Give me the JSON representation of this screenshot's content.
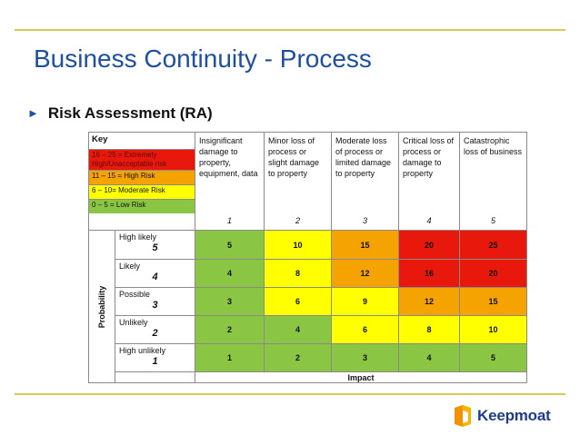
{
  "slide": {
    "title": "Business Continuity - Process",
    "bullet": "Risk Assessment (RA)"
  },
  "matrix": {
    "key_title": "Key",
    "key_bands": [
      {
        "label": "16 – 25 = Extremely High/Unacceptable risk",
        "color": "#e8190c"
      },
      {
        "label": "11 – 15 = High Risk",
        "color": "#f5a300"
      },
      {
        "label": "6 – 10= Moderate Risk",
        "color": "#ffff00"
      },
      {
        "label": "0 – 5 = Low Risk",
        "color": "#8ac644"
      }
    ],
    "impact_columns": [
      {
        "text": "Insignificant damage to property, equipment, data",
        "num": "1"
      },
      {
        "text": "Minor loss of process or slight damage to property",
        "num": "2"
      },
      {
        "text": "Moderate loss of process or limited damage to property",
        "num": "3"
      },
      {
        "text": "Critical loss of process or damage to property",
        "num": "4"
      },
      {
        "text": "Catastrophic loss of business",
        "num": "5"
      }
    ],
    "probability_label": "Probability",
    "probability_rows": [
      {
        "label": "High likely",
        "num": "5",
        "scores": [
          "5",
          "10",
          "15",
          "20",
          "25"
        ]
      },
      {
        "label": "Likely",
        "num": "4",
        "scores": [
          "4",
          "8",
          "12",
          "16",
          "20"
        ]
      },
      {
        "label": "Possible",
        "num": "3",
        "scores": [
          "3",
          "6",
          "9",
          "12",
          "15"
        ]
      },
      {
        "label": "Unlikely",
        "num": "2",
        "scores": [
          "2",
          "4",
          "6",
          "8",
          "10"
        ]
      },
      {
        "label": "High unlikely",
        "num": "1",
        "scores": [
          "1",
          "2",
          "3",
          "4",
          "5"
        ]
      }
    ],
    "impact_label": "Impact"
  },
  "logo": {
    "name": "Keepmoat",
    "colors": {
      "orange": "#f39200",
      "navy": "#1f3c8c"
    }
  }
}
